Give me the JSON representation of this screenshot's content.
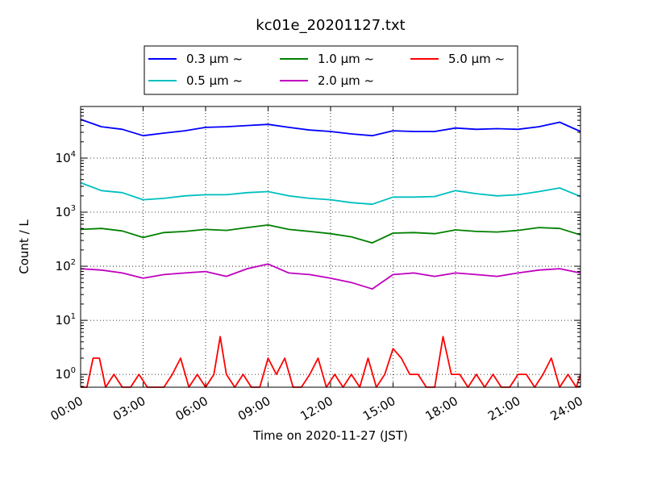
{
  "chart_data": {
    "type": "line",
    "title": "kc01e_20201127.txt",
    "xlabel": "Time on 2020-11-27 (JST)",
    "ylabel": "Count / L",
    "yscale": "log",
    "ylim": [
      0.58,
      90000
    ],
    "xlim": [
      "00:00",
      "24:00"
    ],
    "grid": true,
    "legend_position": "top-center",
    "xticks": [
      "00:00",
      "03:00",
      "06:00",
      "09:00",
      "12:00",
      "15:00",
      "18:00",
      "21:00",
      "24:00"
    ],
    "yticks": [
      {
        "value": 1,
        "label": "10^0"
      },
      {
        "value": 10,
        "label": "10^1"
      },
      {
        "value": 100,
        "label": "10^2"
      },
      {
        "value": 1000,
        "label": "10^3"
      },
      {
        "value": 10000,
        "label": "10^4"
      }
    ],
    "series": [
      {
        "name": "0.3 µm ~",
        "color": "#0000ff",
        "x_hours": [
          0,
          1,
          2,
          3,
          4,
          5,
          6,
          7,
          8,
          9,
          10,
          11,
          12,
          13,
          14,
          15,
          16,
          17,
          18,
          19,
          20,
          21,
          22,
          23,
          24
        ],
        "values": [
          52000,
          38000,
          34000,
          26000,
          29000,
          32000,
          37000,
          38000,
          40000,
          42000,
          37000,
          33000,
          31000,
          28000,
          26000,
          32000,
          31000,
          31000,
          36000,
          34000,
          35000,
          34000,
          38000,
          46000,
          31000
        ]
      },
      {
        "name": "0.5 µm ~",
        "color": "#00bfbf",
        "x_hours": [
          0,
          1,
          2,
          3,
          4,
          5,
          6,
          7,
          8,
          9,
          10,
          11,
          12,
          13,
          14,
          15,
          16,
          17,
          18,
          19,
          20,
          21,
          22,
          23,
          24
        ],
        "values": [
          3500,
          2500,
          2300,
          1700,
          1800,
          2000,
          2100,
          2100,
          2300,
          2400,
          2000,
          1800,
          1700,
          1500,
          1400,
          1900,
          1900,
          1950,
          2500,
          2200,
          2000,
          2100,
          2400,
          2800,
          1950
        ]
      },
      {
        "name": "1.0 µm ~",
        "color": "#008000",
        "x_hours": [
          0,
          1,
          2,
          3,
          4,
          5,
          6,
          7,
          8,
          9,
          10,
          11,
          12,
          13,
          14,
          15,
          16,
          17,
          18,
          19,
          20,
          21,
          22,
          23,
          24
        ],
        "values": [
          480,
          500,
          450,
          340,
          420,
          440,
          480,
          460,
          520,
          580,
          480,
          440,
          400,
          350,
          270,
          410,
          420,
          400,
          470,
          440,
          430,
          460,
          520,
          500,
          380
        ]
      },
      {
        "name": "2.0 µm ~",
        "color": "#bf00bf",
        "x_hours": [
          0,
          1,
          2,
          3,
          4,
          5,
          6,
          7,
          8,
          9,
          10,
          11,
          12,
          13,
          14,
          15,
          16,
          17,
          18,
          19,
          20,
          21,
          22,
          23,
          24
        ],
        "values": [
          90,
          85,
          75,
          60,
          70,
          75,
          80,
          65,
          90,
          110,
          75,
          70,
          60,
          50,
          38,
          70,
          75,
          65,
          75,
          70,
          65,
          75,
          85,
          90,
          75
        ]
      },
      {
        "name": "5.0 µm ~",
        "color": "#ff0000",
        "x_hours": [
          0,
          0.3,
          0.6,
          0.9,
          1.2,
          1.6,
          2.0,
          2.4,
          2.8,
          3.2,
          3.6,
          4.0,
          4.4,
          4.8,
          5.2,
          5.6,
          6.0,
          6.4,
          6.7,
          7.0,
          7.4,
          7.8,
          8.2,
          8.6,
          9.0,
          9.4,
          9.8,
          10.2,
          10.6,
          11.0,
          11.4,
          11.8,
          12.2,
          12.6,
          13.0,
          13.4,
          13.8,
          14.2,
          14.6,
          15.0,
          15.4,
          15.8,
          16.2,
          16.6,
          17.0,
          17.4,
          17.8,
          18.2,
          18.6,
          19.0,
          19.4,
          19.8,
          20.2,
          20.6,
          21.0,
          21.4,
          21.8,
          22.2,
          22.6,
          23.0,
          23.4,
          23.8,
          24.0
        ],
        "values": [
          0,
          0,
          2,
          2,
          0,
          1,
          0,
          0,
          1,
          0,
          0,
          0,
          1,
          2,
          0,
          1,
          0,
          1,
          5,
          1,
          0,
          1,
          0,
          0,
          2,
          1,
          2,
          0,
          0,
          1,
          2,
          0,
          1,
          0,
          1,
          0,
          2,
          0,
          1,
          3,
          2,
          1,
          1,
          0,
          0,
          5,
          1,
          1,
          0,
          1,
          0,
          1,
          0,
          0,
          1,
          1,
          0,
          1,
          2,
          0,
          1,
          0,
          1
        ]
      }
    ]
  }
}
